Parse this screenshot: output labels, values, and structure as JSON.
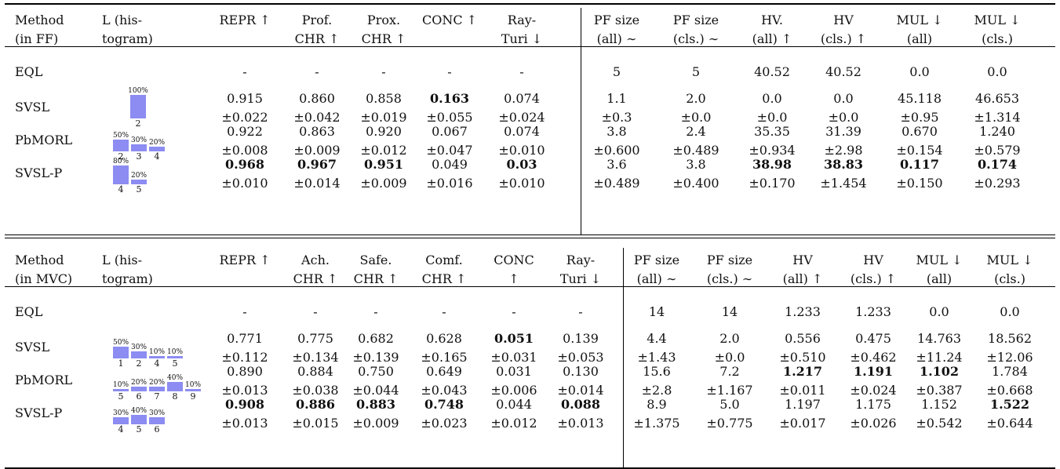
{
  "tables": [
    {
      "header": {
        "method_l1": "Method",
        "method_l2": "(in FF)",
        "hist_l1": "L (his-",
        "hist_l2": "togram)",
        "cols": [
          {
            "l1": "REPR ↑",
            "l2": "",
            "sc1": true
          },
          {
            "l1": "Prof.",
            "l2": "CHR ↑",
            "sc2": true
          },
          {
            "l1": "Prox.",
            "l2": "CHR ↑",
            "sc2": true
          },
          {
            "l1": "CONC ↑",
            "l2": "",
            "sc1": true
          },
          {
            "l1": "Ray-",
            "l2": "Turi ↓",
            "right": true
          },
          {
            "l1": "PF size",
            "l2": "(all) ∼"
          },
          {
            "l1": "PF size",
            "l2": "(cls.) ∼"
          },
          {
            "l1": "HV.",
            "l2": "(all) ↑"
          },
          {
            "l1": "HV",
            "l2": "(cls.) ↑"
          },
          {
            "l1": "MUL ↓",
            "l2": "(all)"
          },
          {
            "l1": "MUL ↓",
            "l2": "(cls.)"
          }
        ]
      },
      "rows": [
        {
          "method": "EQL",
          "single": true,
          "hist": [],
          "cells": [
            [
              "-"
            ],
            [
              "-"
            ],
            [
              "-"
            ],
            [
              "-"
            ],
            [
              "-"
            ],
            [
              "5"
            ],
            [
              "5"
            ],
            [
              "40.52"
            ],
            [
              "40.52"
            ],
            [
              "0.0"
            ],
            [
              "0.0"
            ]
          ]
        },
        {
          "method": "SVSL",
          "hist": [
            {
              "pct": "100%",
              "value": 100,
              "label": "2"
            }
          ],
          "cells": [
            [
              "0.915",
              "±0.022"
            ],
            [
              "0.860",
              "±0.042"
            ],
            [
              "0.858",
              "±0.019"
            ],
            [
              "0.163",
              "±0.055",
              1
            ],
            [
              "0.074",
              "±0.024"
            ],
            [
              "1.1",
              "±0.3"
            ],
            [
              "2.0",
              "±0.0"
            ],
            [
              "0.0",
              "±0.0"
            ],
            [
              "0.0",
              "±0.0"
            ],
            [
              "45.118",
              "±0.95"
            ],
            [
              "46.653",
              "±1.314"
            ]
          ]
        },
        {
          "method": "PbMORL",
          "hist": [
            {
              "pct": "50%",
              "value": 50,
              "label": "2"
            },
            {
              "pct": "30%",
              "value": 30,
              "label": "3"
            },
            {
              "pct": "20%",
              "value": 20,
              "label": "4"
            }
          ],
          "cells": [
            [
              "0.922",
              "±0.008"
            ],
            [
              "0.863",
              "±0.009"
            ],
            [
              "0.920",
              "±0.012"
            ],
            [
              "0.067",
              "±0.047"
            ],
            [
              "0.074",
              "±0.010"
            ],
            [
              "3.8",
              "±0.600"
            ],
            [
              "2.4",
              "±0.489"
            ],
            [
              "35.35",
              "±0.934"
            ],
            [
              "31.39",
              "±2.98"
            ],
            [
              "0.670",
              "±0.154"
            ],
            [
              "1.240",
              "±0.579"
            ]
          ]
        },
        {
          "method": "SVSL-P",
          "hist": [
            {
              "pct": "80%",
              "value": 80,
              "label": "4"
            },
            {
              "pct": "20%",
              "value": 20,
              "label": "5"
            }
          ],
          "cells": [
            [
              "0.968",
              "±0.010",
              1
            ],
            [
              "0.967",
              "±0.014",
              1
            ],
            [
              "0.951",
              "±0.009",
              1
            ],
            [
              "0.049",
              "±0.016"
            ],
            [
              "0.03",
              "±0.010",
              1
            ],
            [
              "3.6",
              "±0.489"
            ],
            [
              "3.8",
              "±0.400"
            ],
            [
              "38.98",
              "±0.170",
              1
            ],
            [
              "38.83",
              "±1.454",
              1
            ],
            [
              "0.117",
              "±0.150",
              1
            ],
            [
              "0.174",
              "±0.293",
              1
            ]
          ]
        }
      ]
    },
    {
      "header": {
        "method_l1": "Method",
        "method_l2": "(in MVC)",
        "hist_l1": "L (his-",
        "hist_l2": "togram)",
        "cols": [
          {
            "l1": "REPR ↑",
            "l2": "",
            "sc1": true
          },
          {
            "l1": "Ach.",
            "l2": "CHR ↑",
            "sc2": true
          },
          {
            "l1": "Safe.",
            "l2": "CHR ↑",
            "sc2": true
          },
          {
            "l1": "Comf.",
            "l2": "CHR ↑",
            "sc2": true
          },
          {
            "l1": "CONC",
            "l2": "↑",
            "sc1": true
          },
          {
            "l1": "Ray-",
            "l2": "Turi ↓",
            "right": true
          },
          {
            "l1": "PF size",
            "l2": "(all) ∼"
          },
          {
            "l1": "PF size",
            "l2": "(cls.) ∼"
          },
          {
            "l1": "HV",
            "l2": "(all) ↑"
          },
          {
            "l1": "HV",
            "l2": "(cls.) ↑"
          },
          {
            "l1": "MUL ↓",
            "l2": "(all)"
          },
          {
            "l1": "MUL ↓",
            "l2": "(cls.)"
          }
        ]
      },
      "rows": [
        {
          "method": "EQL",
          "single": true,
          "hist": [],
          "cells": [
            [
              "-"
            ],
            [
              "-"
            ],
            [
              "-"
            ],
            [
              "-"
            ],
            [
              "-"
            ],
            [
              "-"
            ],
            [
              "14"
            ],
            [
              "14"
            ],
            [
              "1.233"
            ],
            [
              "1.233"
            ],
            [
              "0.0"
            ],
            [
              "0.0"
            ]
          ]
        },
        {
          "method": "SVSL",
          "hist": [
            {
              "pct": "50%",
              "value": 50,
              "label": "1"
            },
            {
              "pct": "30%",
              "value": 30,
              "label": "2"
            },
            {
              "pct": "10%",
              "value": 10,
              "label": "4"
            },
            {
              "pct": "10%",
              "value": 10,
              "label": "5"
            }
          ],
          "cells": [
            [
              "0.771",
              "±0.112"
            ],
            [
              "0.775",
              "±0.134"
            ],
            [
              "0.682",
              "±0.139"
            ],
            [
              "0.628",
              "±0.165"
            ],
            [
              "0.051",
              "±0.031",
              1
            ],
            [
              "0.139",
              "±0.053"
            ],
            [
              "4.4",
              "±1.43"
            ],
            [
              "2.0",
              "±0.0"
            ],
            [
              "0.556",
              "±0.510"
            ],
            [
              "0.475",
              "±0.462"
            ],
            [
              "14.763",
              "±11.24"
            ],
            [
              "18.562",
              "±12.06"
            ]
          ]
        },
        {
          "method": "PbMORL",
          "hist": [
            {
              "pct": "10%",
              "value": 10,
              "label": "5"
            },
            {
              "pct": "20%",
              "value": 20,
              "label": "6"
            },
            {
              "pct": "20%",
              "value": 20,
              "label": "7"
            },
            {
              "pct": "40%",
              "value": 40,
              "label": "8"
            },
            {
              "pct": "10%",
              "value": 10,
              "label": "9"
            }
          ],
          "cells": [
            [
              "0.890",
              "±0.013"
            ],
            [
              "0.884",
              "±0.038"
            ],
            [
              "0.750",
              "±0.044"
            ],
            [
              "0.649",
              "±0.043"
            ],
            [
              "0.031",
              "±0.006"
            ],
            [
              "0.130",
              "±0.014"
            ],
            [
              "15.6",
              "±2.8"
            ],
            [
              "7.2",
              "±1.167"
            ],
            [
              "1.217",
              "±0.011",
              1
            ],
            [
              "1.191",
              "±0.024",
              1
            ],
            [
              "1.102",
              "±0.387",
              1
            ],
            [
              "1.784",
              "±0.668"
            ]
          ]
        },
        {
          "method": "SVSL-P",
          "hist": [
            {
              "pct": "30%",
              "value": 30,
              "label": "4"
            },
            {
              "pct": "40%",
              "value": 40,
              "label": "5"
            },
            {
              "pct": "30%",
              "value": 30,
              "label": "6"
            }
          ],
          "cells": [
            [
              "0.908",
              "±0.013",
              1
            ],
            [
              "0.886",
              "±0.015",
              1
            ],
            [
              "0.883",
              "±0.009",
              1
            ],
            [
              "0.748",
              "±0.023",
              1
            ],
            [
              "0.044",
              "±0.012"
            ],
            [
              "0.088",
              "±0.013",
              1
            ],
            [
              "8.9",
              "±1.375"
            ],
            [
              "5.0",
              "±0.775"
            ],
            [
              "1.197",
              "±0.017"
            ],
            [
              "1.175",
              "±0.026"
            ],
            [
              "1.152",
              "±0.542"
            ],
            [
              "1.522",
              "±0.644",
              1
            ]
          ]
        }
      ]
    }
  ]
}
